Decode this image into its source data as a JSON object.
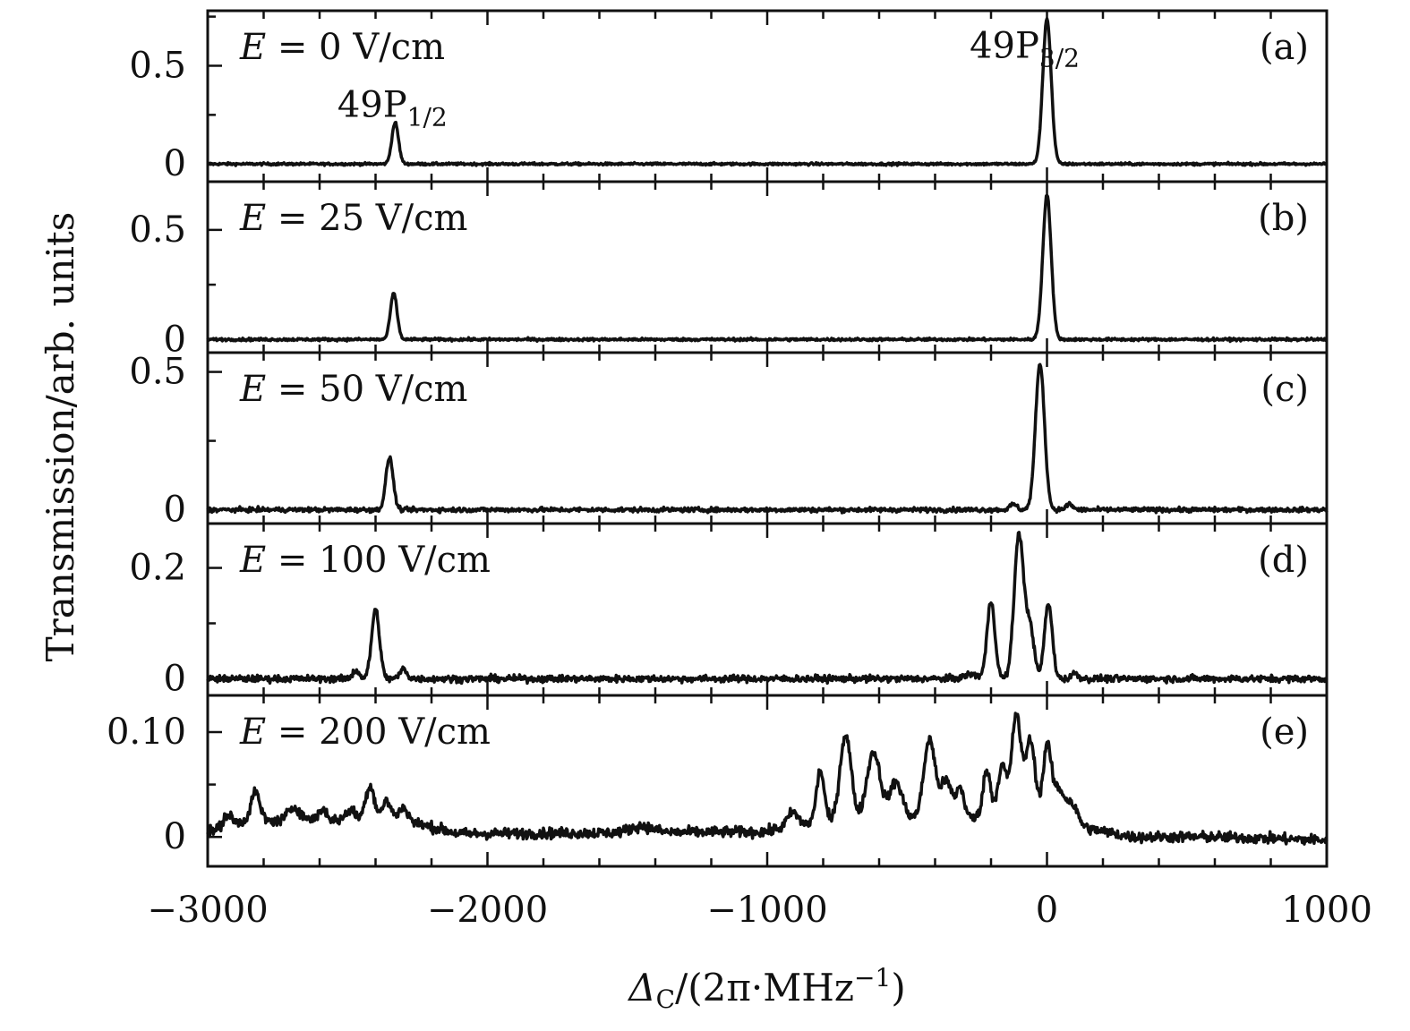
{
  "chart_data": {
    "type": "line",
    "xlabel": "Δ_C/(2π·MHz⁻¹)",
    "xlabel_parts": {
      "delta": "Δ",
      "sub": "C",
      "rest": "/(2π·MHz",
      "sup": "−1",
      "close": ")"
    },
    "ylabel": "Transmission/arb. units",
    "xlim": [
      -3000,
      1000
    ],
    "x_ticks": [
      -3000,
      -2000,
      -1000,
      0,
      1000
    ],
    "x_tick_labels": [
      "−3000",
      "−2000",
      "−1000",
      "0",
      "1000"
    ],
    "grid": false,
    "panels": [
      {
        "tag": "(a)",
        "field_label": {
          "var": "E",
          "rest": " = 0  V/cm"
        },
        "ylim": [
          -0.09,
          0.78
        ],
        "y_ticks": [
          0,
          0.5
        ],
        "y_tick_labels": [
          "0",
          "0.5"
        ],
        "noise": 0.003,
        "annotations": [
          {
            "text": "49P",
            "sub": "1/2",
            "x": -2340,
            "y": 0.3
          },
          {
            "text": "49P",
            "sub": "3/2",
            "x": -80,
            "y": 0.6
          }
        ],
        "peaks": [
          {
            "x": -2330,
            "amp": 0.21,
            "width": 12
          },
          {
            "x": 0,
            "amp": 0.74,
            "width": 15
          }
        ]
      },
      {
        "tag": "(b)",
        "field_label": {
          "var": "E",
          "rest": " = 25  V/cm"
        },
        "ylim": [
          -0.06,
          0.72
        ],
        "y_ticks": [
          0,
          0.5
        ],
        "y_tick_labels": [
          "0",
          "0.5"
        ],
        "noise": 0.003,
        "peaks": [
          {
            "x": -2335,
            "amp": 0.21,
            "width": 12
          },
          {
            "x": 0,
            "amp": 0.66,
            "width": 15
          }
        ]
      },
      {
        "tag": "(c)",
        "field_label": {
          "var": "E",
          "rest": " = 50  V/cm"
        },
        "ylim": [
          -0.05,
          0.57
        ],
        "y_ticks": [
          0,
          0.5
        ],
        "y_tick_labels": [
          "0",
          "0.5"
        ],
        "noise": 0.004,
        "peaks": [
          {
            "x": -2350,
            "amp": 0.19,
            "width": 13
          },
          {
            "x": -120,
            "amp": 0.02,
            "width": 12
          },
          {
            "x": -25,
            "amp": 0.53,
            "width": 16
          },
          {
            "x": 80,
            "amp": 0.02,
            "width": 12
          }
        ]
      },
      {
        "tag": "(d)",
        "field_label": {
          "var": "E",
          "rest": " = 100  V/cm"
        },
        "ylim": [
          -0.03,
          0.28
        ],
        "y_ticks": [
          0,
          0.2
        ],
        "y_tick_labels": [
          "0",
          "0.2"
        ],
        "noise": 0.003,
        "peaks": [
          {
            "x": -2470,
            "amp": 0.015,
            "width": 12
          },
          {
            "x": -2400,
            "amp": 0.125,
            "width": 14
          },
          {
            "x": -2300,
            "amp": 0.018,
            "width": 12
          },
          {
            "x": -270,
            "amp": 0.008,
            "width": 25
          },
          {
            "x": -200,
            "amp": 0.14,
            "width": 14
          },
          {
            "x": -100,
            "amp": 0.262,
            "width": 17
          },
          {
            "x": -60,
            "amp": 0.09,
            "width": 14
          },
          {
            "x": 5,
            "amp": 0.135,
            "width": 14
          },
          {
            "x": 100,
            "amp": 0.01,
            "width": 12
          }
        ]
      },
      {
        "tag": "(e)",
        "field_label": {
          "var": "E",
          "rest": " = 200  V/cm"
        },
        "ylim": [
          -0.028,
          0.135
        ],
        "y_ticks": [
          0,
          0.1
        ],
        "y_tick_labels": [
          "0",
          "0.10"
        ],
        "noise": 0.0025,
        "peaks": [
          {
            "x": -2930,
            "amp": 0.01,
            "width": 14
          },
          {
            "x": -2830,
            "amp": 0.028,
            "width": 16
          },
          {
            "x": -2690,
            "amp": 0.012,
            "width": 22
          },
          {
            "x": -2590,
            "amp": 0.01,
            "width": 16
          },
          {
            "x": -2490,
            "amp": 0.01,
            "width": 16
          },
          {
            "x": -2420,
            "amp": 0.033,
            "width": 16
          },
          {
            "x": -2360,
            "amp": 0.018,
            "width": 16
          },
          {
            "x": -2300,
            "amp": 0.012,
            "width": 16
          },
          {
            "x": -910,
            "amp": 0.012,
            "width": 18
          },
          {
            "x": -810,
            "amp": 0.05,
            "width": 14
          },
          {
            "x": -720,
            "amp": 0.083,
            "width": 20
          },
          {
            "x": -620,
            "amp": 0.065,
            "width": 24
          },
          {
            "x": -540,
            "amp": 0.035,
            "width": 22
          },
          {
            "x": -420,
            "amp": 0.075,
            "width": 20
          },
          {
            "x": -360,
            "amp": 0.035,
            "width": 20
          },
          {
            "x": -310,
            "amp": 0.028,
            "width": 14
          },
          {
            "x": -215,
            "amp": 0.045,
            "width": 14
          },
          {
            "x": -160,
            "amp": 0.05,
            "width": 16
          },
          {
            "x": -110,
            "amp": 0.098,
            "width": 16
          },
          {
            "x": -60,
            "amp": 0.074,
            "width": 18
          },
          {
            "x": 0,
            "amp": 0.065,
            "width": 14
          },
          {
            "x": 40,
            "amp": 0.03,
            "width": 22
          },
          {
            "x": 90,
            "amp": 0.018,
            "width": 20
          },
          {
            "x": -1450,
            "amp": 0.006,
            "width": 40
          }
        ],
        "envelope": [
          {
            "x": -3000,
            "y": 0.004
          },
          {
            "x": -2900,
            "y": 0.014
          },
          {
            "x": -2700,
            "y": 0.016
          },
          {
            "x": -2300,
            "y": 0.016
          },
          {
            "x": -2100,
            "y": 0.003
          },
          {
            "x": -1000,
            "y": 0.005
          },
          {
            "x": -900,
            "y": 0.012
          },
          {
            "x": -500,
            "y": 0.018
          },
          {
            "x": 0,
            "y": 0.018
          },
          {
            "x": 150,
            "y": 0.008
          },
          {
            "x": 300,
            "y": 0.0
          },
          {
            "x": 600,
            "y": 0.0
          },
          {
            "x": 1000,
            "y": -0.003
          }
        ]
      }
    ]
  }
}
